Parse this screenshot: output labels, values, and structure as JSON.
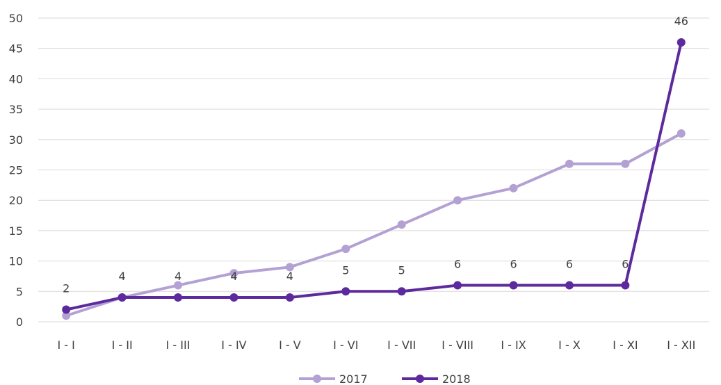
{
  "chart_data": {
    "type": "line",
    "categories": [
      "I - I",
      "I - II",
      "I - III",
      "I - IV",
      "I - V",
      "I - VI",
      "I - VII",
      "I - VIII",
      "I - IX",
      "I - X",
      "I - XI",
      "I - XII"
    ],
    "series": [
      {
        "name": "2017",
        "color": "#b4a1d4",
        "values": [
          1,
          4,
          6,
          8,
          9,
          12,
          16,
          20,
          22,
          26,
          26,
          31
        ]
      },
      {
        "name": "2018",
        "color": "#5c2a9d",
        "values": [
          2,
          4,
          4,
          4,
          4,
          5,
          5,
          6,
          6,
          6,
          6,
          46
        ],
        "data_labels": [
          "2",
          "4",
          "4",
          "4",
          "4",
          "5",
          "5",
          "6",
          "6",
          "6",
          "6",
          "46"
        ]
      }
    ],
    "y_ticks": [
      "0",
      "5",
      "10",
      "15",
      "20",
      "25",
      "30",
      "35",
      "40",
      "45",
      "50"
    ],
    "ylim": [
      0,
      50
    ],
    "grid": true,
    "legend_position": "bottom",
    "title": "",
    "xlabel": "",
    "ylabel": ""
  }
}
